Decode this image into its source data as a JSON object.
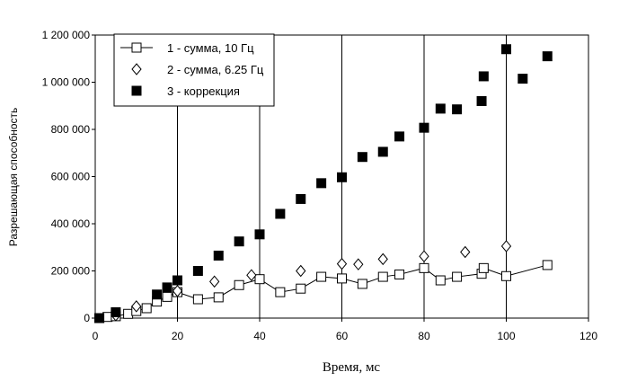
{
  "chart_data": {
    "type": "scatter",
    "title": "",
    "xlabel": "Время,  мс",
    "ylabel": "Разрешающая способность",
    "xlim": [
      0,
      120
    ],
    "ylim": [
      0,
      1200000
    ],
    "xticks": [
      0,
      20,
      40,
      60,
      80,
      100,
      120
    ],
    "xtick_labels": [
      "0",
      "20",
      "40",
      "60",
      "80",
      "100",
      "120"
    ],
    "yticks": [
      0,
      200000,
      400000,
      600000,
      800000,
      1000000,
      1200000
    ],
    "ytick_labels": [
      "0",
      "200 000",
      "400 000",
      "600 000",
      "800 000",
      "1 000 000",
      "1 200 000"
    ],
    "grid": "vertical",
    "legend_position": "top-left",
    "series": [
      {
        "name": "1 - сумма, 10 Гц",
        "marker": "open-square",
        "line": true,
        "color": "#000000",
        "points": [
          [
            1,
            0
          ],
          [
            3,
            5000
          ],
          [
            5,
            8000
          ],
          [
            8,
            18000
          ],
          [
            10,
            30000
          ],
          [
            12.5,
            42000
          ],
          [
            15,
            70000
          ],
          [
            17.5,
            90000
          ],
          [
            20,
            110000
          ],
          [
            25,
            80000
          ],
          [
            30,
            88000
          ],
          [
            35,
            140000
          ],
          [
            40,
            165000
          ],
          [
            45,
            110000
          ],
          [
            50,
            125000
          ],
          [
            55,
            175000
          ],
          [
            60,
            168000
          ],
          [
            65,
            145000
          ],
          [
            70,
            175000
          ],
          [
            74,
            185000
          ],
          [
            80,
            212000
          ],
          [
            84,
            160000
          ],
          [
            88,
            175000
          ],
          [
            94,
            188000
          ],
          [
            94.5,
            212000
          ],
          [
            100,
            178000
          ],
          [
            110,
            225000
          ]
        ]
      },
      {
        "name": "2 - сумма, 6.25 Гц",
        "marker": "open-diamond",
        "line": false,
        "color": "#000000",
        "points": [
          [
            5,
            12000
          ],
          [
            10,
            50000
          ],
          [
            20,
            115000
          ],
          [
            29,
            155000
          ],
          [
            38,
            182000
          ],
          [
            50,
            200000
          ],
          [
            60,
            230000
          ],
          [
            64,
            228000
          ],
          [
            70,
            250000
          ],
          [
            80,
            262000
          ],
          [
            90,
            280000
          ],
          [
            100,
            305000
          ]
        ]
      },
      {
        "name": "3 - коррекция",
        "marker": "filled-square",
        "line": false,
        "color": "#000000",
        "points": [
          [
            1,
            0
          ],
          [
            5,
            25000
          ],
          [
            15,
            100000
          ],
          [
            17.5,
            130000
          ],
          [
            20,
            160000
          ],
          [
            25,
            200000
          ],
          [
            30,
            265000
          ],
          [
            35,
            325000
          ],
          [
            40,
            355000
          ],
          [
            45,
            442000
          ],
          [
            50,
            505000
          ],
          [
            55,
            572000
          ],
          [
            60,
            597000
          ],
          [
            65,
            683000
          ],
          [
            70,
            705000
          ],
          [
            74,
            770000
          ],
          [
            80,
            807000
          ],
          [
            84,
            888000
          ],
          [
            88,
            885000
          ],
          [
            94,
            920000
          ],
          [
            94.5,
            1025000
          ],
          [
            100,
            1140000
          ],
          [
            104,
            1015000
          ],
          [
            110,
            1110000
          ]
        ]
      }
    ]
  }
}
